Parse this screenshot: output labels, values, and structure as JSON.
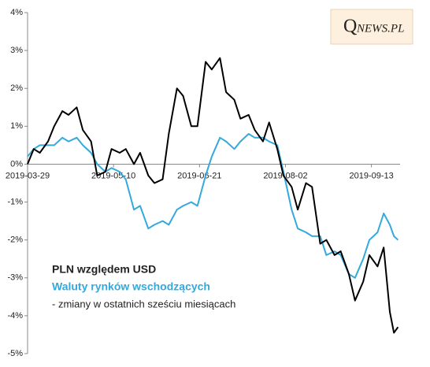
{
  "logo": {
    "initial": "Q",
    "rest": "NEWS.PL"
  },
  "chart_data": {
    "type": "line",
    "note": "- zmiany w ostatnich sześciu miesiącach",
    "x": [
      "2019-03-29",
      "2019-04-01",
      "2019-04-04",
      "2019-04-08",
      "2019-04-11",
      "2019-04-15",
      "2019-04-18",
      "2019-04-22",
      "2019-04-25",
      "2019-04-29",
      "2019-05-02",
      "2019-05-06",
      "2019-05-09",
      "2019-05-13",
      "2019-05-16",
      "2019-05-20",
      "2019-05-23",
      "2019-05-27",
      "2019-05-30",
      "2019-06-03",
      "2019-06-06",
      "2019-06-10",
      "2019-06-13",
      "2019-06-17",
      "2019-06-20",
      "2019-06-24",
      "2019-06-27",
      "2019-07-01",
      "2019-07-04",
      "2019-07-08",
      "2019-07-11",
      "2019-07-15",
      "2019-07-18",
      "2019-07-22",
      "2019-07-25",
      "2019-07-29",
      "2019-08-01",
      "2019-08-05",
      "2019-08-08",
      "2019-08-12",
      "2019-08-15",
      "2019-08-19",
      "2019-08-22",
      "2019-08-26",
      "2019-08-29",
      "2019-09-02",
      "2019-09-05",
      "2019-09-09",
      "2019-09-12",
      "2019-09-16",
      "2019-09-19",
      "2019-09-22",
      "2019-09-24",
      "2019-09-26"
    ],
    "series": [
      {
        "name": "PLN względem USD",
        "color": "#000000",
        "values": [
          0.0,
          0.4,
          0.3,
          0.6,
          1.0,
          1.4,
          1.3,
          1.5,
          0.9,
          0.6,
          -0.3,
          -0.2,
          0.4,
          0.3,
          0.4,
          0.0,
          0.3,
          -0.3,
          -0.5,
          -0.4,
          0.8,
          2.0,
          1.8,
          1.0,
          1.0,
          2.7,
          2.5,
          2.8,
          1.9,
          1.7,
          1.2,
          1.3,
          0.9,
          0.6,
          1.1,
          0.4,
          -0.3,
          -0.6,
          -1.2,
          -0.5,
          -0.6,
          -2.1,
          -2.0,
          -2.4,
          -2.3,
          -2.9,
          -3.6,
          -3.1,
          -2.4,
          -2.7,
          -2.2,
          -3.9,
          -4.45,
          -4.3
        ]
      },
      {
        "name": "Waluty rynków wschodzących",
        "color": "#33a9dc",
        "values": [
          0.2,
          0.4,
          0.5,
          0.5,
          0.5,
          0.7,
          0.6,
          0.7,
          0.5,
          0.3,
          0.0,
          -0.2,
          -0.1,
          -0.2,
          -0.4,
          -1.2,
          -1.1,
          -1.7,
          -1.6,
          -1.5,
          -1.6,
          -1.2,
          -1.1,
          -1.0,
          -1.1,
          -0.3,
          0.2,
          0.7,
          0.6,
          0.4,
          0.6,
          0.8,
          0.7,
          0.7,
          0.6,
          0.5,
          -0.2,
          -1.2,
          -1.7,
          -1.8,
          -1.9,
          -1.9,
          -2.4,
          -2.3,
          -2.4,
          -2.9,
          -3.0,
          -2.5,
          -2.0,
          -1.8,
          -1.3,
          -1.6,
          -1.9,
          -2.0
        ]
      }
    ],
    "xlim": [
      "2019-03-29",
      "2019-09-27"
    ],
    "xticks": [
      "2019-03-29",
      "2019-05-10",
      "2019-06-21",
      "2019-08-02",
      "2019-09-13"
    ],
    "ylim": [
      -5,
      4
    ],
    "yticks": [
      {
        "value": 4,
        "label": "4%"
      },
      {
        "value": 3,
        "label": "3%"
      },
      {
        "value": 2,
        "label": "2%"
      },
      {
        "value": 1,
        "label": "1%"
      },
      {
        "value": 0,
        "label": "0%"
      },
      {
        "value": -1,
        "label": "-1%"
      },
      {
        "value": -2,
        "label": "-2%"
      },
      {
        "value": -3,
        "label": "-3%"
      },
      {
        "value": -4,
        "label": "-4%"
      },
      {
        "value": -5,
        "label": "-5%"
      }
    ],
    "grid": false
  }
}
